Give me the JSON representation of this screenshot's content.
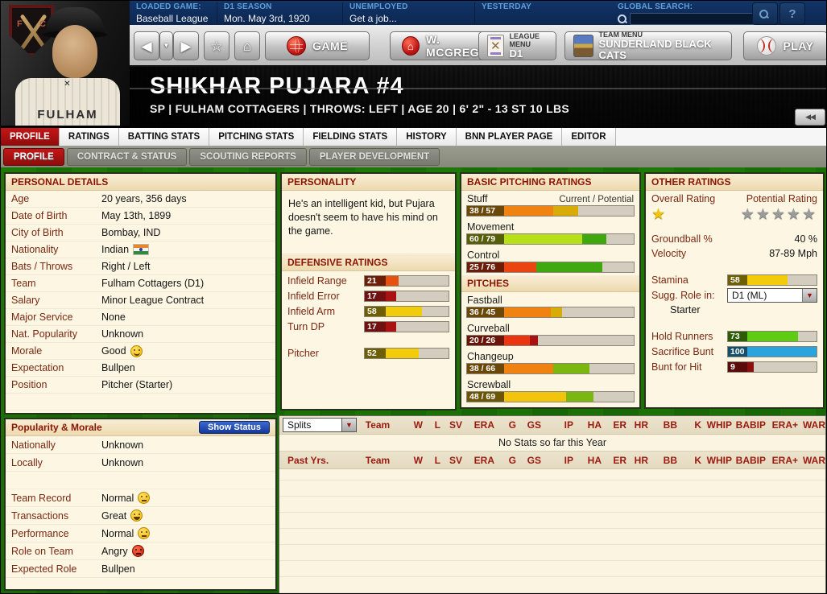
{
  "topbar": {
    "sections": [
      {
        "label": "LOADED GAME:",
        "value": "Baseball League"
      },
      {
        "label": "D1 SEASON",
        "value": "Mon. May 3rd, 1920"
      },
      {
        "label": "UNEMPLOYED",
        "value": "Get a job..."
      },
      {
        "label": "YESTERDAY",
        "value": ""
      },
      {
        "label": "GLOBAL SEARCH:",
        "value": ""
      }
    ],
    "search_value": "",
    "help_button": "?"
  },
  "nav": {
    "back": "◀",
    "drop": "▼",
    "forward": "▶",
    "favorite": "☆",
    "home": "⌂",
    "game_label": "GAME",
    "manager_label": "W. MCGREGOR",
    "league_menu_title": "LEAGUE MENU",
    "league_menu_value": "D1",
    "team_menu_title": "TEAM MENU",
    "team_menu_value": "SUNDERLAND BLACK CATS",
    "play_label": "PLAY",
    "manager_home_glyph": "⌂"
  },
  "player": {
    "name": "SHIKHAR PUJARA  #4",
    "subtitle": "SP | FULHAM COTTAGERS | THROWS: LEFT | AGE 20 | 6' 2\" - 13 ST 10 LBS",
    "jersey_text": "FULHAM",
    "collapse_button": "◀◀"
  },
  "tabs": {
    "main": [
      "PROFILE",
      "RATINGS",
      "BATTING STATS",
      "PITCHING STATS",
      "FIELDING STATS",
      "HISTORY",
      "BNN PLAYER PAGE",
      "EDITOR"
    ],
    "main_active": "PROFILE",
    "sub": [
      "PROFILE",
      "CONTRACT & STATUS",
      "SCOUTING REPORTS",
      "PLAYER DEVELOPMENT"
    ],
    "sub_active": "PROFILE"
  },
  "personal_details": {
    "title": "PERSONAL DETAILS",
    "rows": [
      {
        "label": "Age",
        "value": "20 years, 356 days"
      },
      {
        "label": "Date of Birth",
        "value": "May 13th, 1899"
      },
      {
        "label": "City of Birth",
        "value": "Bombay, IND"
      },
      {
        "label": "Nationality",
        "value": "Indian",
        "flag": "india-flag"
      },
      {
        "label": "Bats / Throws",
        "value": "Right / Left"
      },
      {
        "label": "Team",
        "value": "Fulham Cottagers (D1)"
      },
      {
        "label": "Salary",
        "value": "Minor League Contract"
      },
      {
        "label": "Major Service",
        "value": "None"
      },
      {
        "label": "Nat. Popularity",
        "value": "Unknown"
      },
      {
        "label": "Morale",
        "value": "Good",
        "face": "smile"
      },
      {
        "label": "Expectation",
        "value": "Bullpen"
      },
      {
        "label": "Position",
        "value": "Pitcher (Starter)"
      }
    ]
  },
  "personality": {
    "title": "PERSONALITY",
    "text": "He's an intelligent kid, but Pujara doesn't seem to have his mind on the game."
  },
  "defensive_ratings": {
    "title": "DEFENSIVE RATINGS",
    "rows": [
      {
        "label": "Infield Range",
        "value": 21,
        "box": "#6e1d06",
        "fill": "#e8500e"
      },
      {
        "label": "Infield Error",
        "value": 17,
        "box": "#701010",
        "fill": "#a81212"
      },
      {
        "label": "Infield Arm",
        "value": 58,
        "box": "#6e5e04",
        "fill": "#f2cb0a"
      },
      {
        "label": "Turn DP",
        "value": 17,
        "box": "#701010",
        "fill": "#a81212"
      },
      {
        "label": "Pitcher",
        "value": 52,
        "box": "#6e5e04",
        "fill": "#f2cb0a",
        "gap_before": true
      }
    ]
  },
  "pitching_ratings": {
    "title": "BASIC PITCHING RATINGS",
    "scale_label": "Current / Potential",
    "rows": [
      {
        "label": "Stuff",
        "cur": 38,
        "pot": 57,
        "box": "#6b4708",
        "cur_color": "#f08212",
        "pot_color": "#d8ac06",
        "show_scale": true
      },
      {
        "label": "Movement",
        "cur": 60,
        "pot": 79,
        "box": "#565e08",
        "cur_color": "#b7e018",
        "pot_color": "#3fa80e"
      },
      {
        "label": "Control",
        "cur": 25,
        "pot": 76,
        "box": "#6b1d08",
        "cur_color": "#ea4410",
        "pot_color": "#3fa80e"
      }
    ]
  },
  "pitches": {
    "title": "PITCHES",
    "rows": [
      {
        "label": "Fastball",
        "cur": 36,
        "pot": 45,
        "box": "#6b4708",
        "cur_color": "#f08212",
        "pot_color": "#d8ac06"
      },
      {
        "label": "Curveball",
        "cur": 20,
        "pot": 26,
        "box": "#6b1408",
        "cur_color": "#ea3510",
        "pot_color": "#a81212"
      },
      {
        "label": "Changeup",
        "cur": 38,
        "pot": 66,
        "box": "#6b4708",
        "cur_color": "#f08212",
        "pot_color": "#7ab811"
      },
      {
        "label": "Screwball",
        "cur": 48,
        "pot": 69,
        "box": "#6b5608",
        "cur_color": "#f2c50c",
        "pot_color": "#7ab811"
      }
    ]
  },
  "other_ratings": {
    "title": "OTHER RATINGS",
    "overall_label": "Overall Rating",
    "potential_label": "Potential Rating",
    "overall_stars": {
      "filled": 1,
      "slots": 1
    },
    "potential_stars": {
      "filled": 0,
      "slots": 5
    },
    "groundball_label": "Groundball %",
    "groundball_value": "40 %",
    "velocity_label": "Velocity",
    "velocity_value": "87-89 Mph",
    "stamina": {
      "label": "Stamina",
      "value": 58,
      "box": "#6e5e04",
      "fill": "#f2cb0a"
    },
    "sugg_role_label": "Sugg. Role in:",
    "sugg_role_value": "D1 (ML)",
    "sugg_role_detail": "Starter",
    "bars": [
      {
        "label": "Hold Runners",
        "value": 73,
        "box": "#2d5c09",
        "fill": "#5ecc12"
      },
      {
        "label": "Sacrifice Bunt",
        "value": 100,
        "box": "#14506b",
        "fill": "#2ba3dd"
      },
      {
        "label": "Bunt for Hit",
        "value": 9,
        "box": "#5c0b0b",
        "fill": "#8a1010"
      }
    ]
  },
  "popularity": {
    "title": "Popularity & Morale",
    "button": "Show Status",
    "rows": [
      {
        "label": "Nationally",
        "value": "Unknown"
      },
      {
        "label": "Locally",
        "value": "Unknown"
      },
      {
        "label": "",
        "value": ""
      },
      {
        "label": "Team Record",
        "value": "Normal",
        "face": "neutral"
      },
      {
        "label": "Transactions",
        "value": "Great",
        "face": "grin"
      },
      {
        "label": "Performance",
        "value": "Normal",
        "face": "neutral"
      },
      {
        "label": "Role on Team",
        "value": "Angry",
        "face": "angry"
      },
      {
        "label": "Expected Role",
        "value": "Bullpen"
      }
    ]
  },
  "stats": {
    "splits_label": "Splits",
    "past_label": "Past Yrs.",
    "columns": [
      "Team",
      "W",
      "L",
      "SV",
      "ERA",
      "G",
      "GS",
      "IP",
      "HA",
      "ER",
      "HR",
      "BB",
      "K",
      "WHIP",
      "BABIP",
      "ERA+",
      "WAR"
    ],
    "empty_message": "No Stats so far this Year"
  }
}
